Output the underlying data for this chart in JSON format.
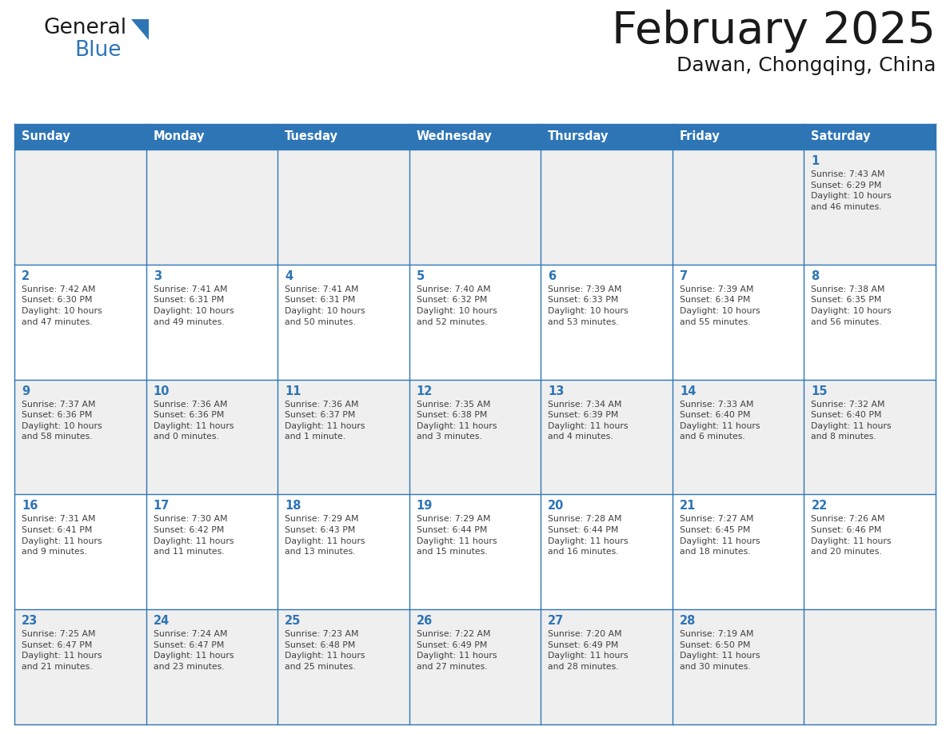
{
  "title": "February 2025",
  "subtitle": "Dawan, Chongqing, China",
  "header_bg_color": "#2e75b6",
  "header_text_color": "#ffffff",
  "odd_row_bg": "#efefef",
  "even_row_bg": "#ffffff",
  "day_number_color": "#2e75b6",
  "info_text_color": "#404040",
  "border_color": "#2e75b6",
  "logo_general_color": "#1a1a1a",
  "logo_blue_color": "#2e75b6",
  "logo_triangle_color": "#2e75b6",
  "days_of_week": [
    "Sunday",
    "Monday",
    "Tuesday",
    "Wednesday",
    "Thursday",
    "Friday",
    "Saturday"
  ],
  "weeks": [
    [
      {
        "day": null,
        "info": ""
      },
      {
        "day": null,
        "info": ""
      },
      {
        "day": null,
        "info": ""
      },
      {
        "day": null,
        "info": ""
      },
      {
        "day": null,
        "info": ""
      },
      {
        "day": null,
        "info": ""
      },
      {
        "day": 1,
        "info": "Sunrise: 7:43 AM\nSunset: 6:29 PM\nDaylight: 10 hours\nand 46 minutes."
      }
    ],
    [
      {
        "day": 2,
        "info": "Sunrise: 7:42 AM\nSunset: 6:30 PM\nDaylight: 10 hours\nand 47 minutes."
      },
      {
        "day": 3,
        "info": "Sunrise: 7:41 AM\nSunset: 6:31 PM\nDaylight: 10 hours\nand 49 minutes."
      },
      {
        "day": 4,
        "info": "Sunrise: 7:41 AM\nSunset: 6:31 PM\nDaylight: 10 hours\nand 50 minutes."
      },
      {
        "day": 5,
        "info": "Sunrise: 7:40 AM\nSunset: 6:32 PM\nDaylight: 10 hours\nand 52 minutes."
      },
      {
        "day": 6,
        "info": "Sunrise: 7:39 AM\nSunset: 6:33 PM\nDaylight: 10 hours\nand 53 minutes."
      },
      {
        "day": 7,
        "info": "Sunrise: 7:39 AM\nSunset: 6:34 PM\nDaylight: 10 hours\nand 55 minutes."
      },
      {
        "day": 8,
        "info": "Sunrise: 7:38 AM\nSunset: 6:35 PM\nDaylight: 10 hours\nand 56 minutes."
      }
    ],
    [
      {
        "day": 9,
        "info": "Sunrise: 7:37 AM\nSunset: 6:36 PM\nDaylight: 10 hours\nand 58 minutes."
      },
      {
        "day": 10,
        "info": "Sunrise: 7:36 AM\nSunset: 6:36 PM\nDaylight: 11 hours\nand 0 minutes."
      },
      {
        "day": 11,
        "info": "Sunrise: 7:36 AM\nSunset: 6:37 PM\nDaylight: 11 hours\nand 1 minute."
      },
      {
        "day": 12,
        "info": "Sunrise: 7:35 AM\nSunset: 6:38 PM\nDaylight: 11 hours\nand 3 minutes."
      },
      {
        "day": 13,
        "info": "Sunrise: 7:34 AM\nSunset: 6:39 PM\nDaylight: 11 hours\nand 4 minutes."
      },
      {
        "day": 14,
        "info": "Sunrise: 7:33 AM\nSunset: 6:40 PM\nDaylight: 11 hours\nand 6 minutes."
      },
      {
        "day": 15,
        "info": "Sunrise: 7:32 AM\nSunset: 6:40 PM\nDaylight: 11 hours\nand 8 minutes."
      }
    ],
    [
      {
        "day": 16,
        "info": "Sunrise: 7:31 AM\nSunset: 6:41 PM\nDaylight: 11 hours\nand 9 minutes."
      },
      {
        "day": 17,
        "info": "Sunrise: 7:30 AM\nSunset: 6:42 PM\nDaylight: 11 hours\nand 11 minutes."
      },
      {
        "day": 18,
        "info": "Sunrise: 7:29 AM\nSunset: 6:43 PM\nDaylight: 11 hours\nand 13 minutes."
      },
      {
        "day": 19,
        "info": "Sunrise: 7:29 AM\nSunset: 6:44 PM\nDaylight: 11 hours\nand 15 minutes."
      },
      {
        "day": 20,
        "info": "Sunrise: 7:28 AM\nSunset: 6:44 PM\nDaylight: 11 hours\nand 16 minutes."
      },
      {
        "day": 21,
        "info": "Sunrise: 7:27 AM\nSunset: 6:45 PM\nDaylight: 11 hours\nand 18 minutes."
      },
      {
        "day": 22,
        "info": "Sunrise: 7:26 AM\nSunset: 6:46 PM\nDaylight: 11 hours\nand 20 minutes."
      }
    ],
    [
      {
        "day": 23,
        "info": "Sunrise: 7:25 AM\nSunset: 6:47 PM\nDaylight: 11 hours\nand 21 minutes."
      },
      {
        "day": 24,
        "info": "Sunrise: 7:24 AM\nSunset: 6:47 PM\nDaylight: 11 hours\nand 23 minutes."
      },
      {
        "day": 25,
        "info": "Sunrise: 7:23 AM\nSunset: 6:48 PM\nDaylight: 11 hours\nand 25 minutes."
      },
      {
        "day": 26,
        "info": "Sunrise: 7:22 AM\nSunset: 6:49 PM\nDaylight: 11 hours\nand 27 minutes."
      },
      {
        "day": 27,
        "info": "Sunrise: 7:20 AM\nSunset: 6:49 PM\nDaylight: 11 hours\nand 28 minutes."
      },
      {
        "day": 28,
        "info": "Sunrise: 7:19 AM\nSunset: 6:50 PM\nDaylight: 11 hours\nand 30 minutes."
      },
      {
        "day": null,
        "info": ""
      }
    ]
  ]
}
